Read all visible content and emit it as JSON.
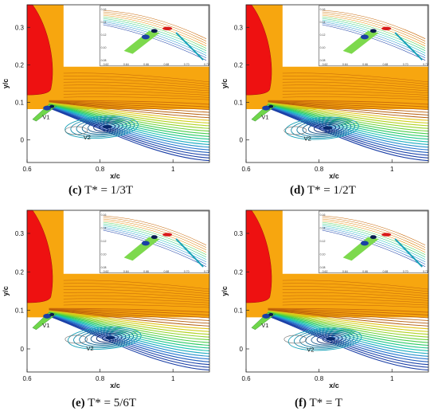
{
  "figure": {
    "axis_x_label": "x/c",
    "axis_y_label": "y/c",
    "x_ticks": [
      "0.6",
      "0.8",
      "1"
    ],
    "y_ticks": [
      "0",
      "0.1",
      "0.2",
      "0.3"
    ],
    "inset_x_ticks": [
      "0.62",
      "0.64",
      "0.66",
      "0.68",
      "0.70",
      "0.72"
    ],
    "inset_y_ticks": [
      "0.16",
      "0.14",
      "0.12",
      "0.10",
      "0.08"
    ],
    "vortex_labels": [
      "V1",
      "V2"
    ],
    "colors": {
      "freestream": "#f7a60f",
      "blade": "#ee1111",
      "vortex_core": "#0a2a6e"
    },
    "panels": [
      {
        "letter": "(c)",
        "caption": "T* = 1/3T"
      },
      {
        "letter": "(d)",
        "caption": "T* = 1/2T"
      },
      {
        "letter": "(e)",
        "caption": "T* = 5/6T"
      },
      {
        "letter": "(f)",
        "caption": "T* = T"
      }
    ]
  }
}
